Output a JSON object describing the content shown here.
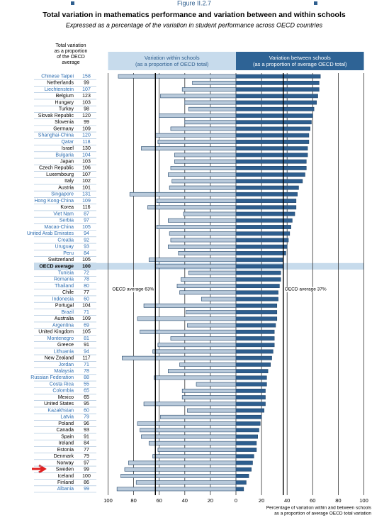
{
  "chart_data": {
    "type": "diverging_bar",
    "figure_label": "Figure II.2.7",
    "title": "Total variation in mathematics performance and variation between and within schools",
    "subtitle": "Expressed as a percentage of the variation in student performance across OECD countries",
    "total_header": [
      "Total variation",
      "as a proportion",
      "of the OECD",
      "average"
    ],
    "categories": [
      "Chinese Taipei",
      "Netherlands",
      "Liechtenstein",
      "Belgium",
      "Hungary",
      "Turkey",
      "Slovak Republic",
      "Slovenia",
      "Germany",
      "Shanghai-China",
      "Qatar",
      "Israel",
      "Bulgaria",
      "Japan",
      "Czech Republic",
      "Luxembourg",
      "Italy",
      "Austria",
      "Singapore",
      "Hong Kong-China",
      "Korea",
      "Viet Nam",
      "Serbia",
      "Macao-China",
      "United Arab Emirates",
      "Croatia",
      "Uruguay",
      "Peru",
      "Switzerland",
      "OECD average",
      "Tunisia",
      "Romania",
      "Thailand",
      "Chile",
      "Indonesia",
      "Portugal",
      "Brazil",
      "Australia",
      "Argentina",
      "United Kingdom",
      "Montenegro",
      "Greece",
      "Lithuania",
      "New Zealand",
      "Jordan",
      "Malaysia",
      "Russian Federation",
      "Costa Rica",
      "Colombia",
      "Mexico",
      "United States",
      "Kazakhstan",
      "Latvia",
      "Poland",
      "Canada",
      "Spain",
      "Ireland",
      "Estonia",
      "Denmark",
      "Norway",
      "Sweden",
      "Iceland",
      "Finland",
      "Albania"
    ],
    "totals": [
      158,
      99,
      107,
      123,
      103,
      98,
      120,
      99,
      109,
      120,
      118,
      130,
      104,
      103,
      106,
      107,
      102,
      101,
      131,
      109,
      116,
      87,
      97,
      105,
      94,
      92,
      93,
      84,
      105,
      100,
      72,
      78,
      80,
      77,
      60,
      104,
      71,
      109,
      69,
      105,
      81,
      91,
      94,
      117,
      71,
      78,
      88,
      55,
      65,
      65,
      95,
      60,
      79,
      96,
      93,
      91,
      84,
      77,
      79,
      97,
      99,
      100,
      86,
      99
    ],
    "label_colors": [
      "#2b6cb0",
      "#000000",
      "#2b6cb0",
      "#000000",
      "#000000",
      "#000000",
      "#000000",
      "#000000",
      "#000000",
      "#2b6cb0",
      "#2b6cb0",
      "#000000",
      "#2b6cb0",
      "#000000",
      "#000000",
      "#000000",
      "#000000",
      "#000000",
      "#2b6cb0",
      "#2b6cb0",
      "#000000",
      "#2b6cb0",
      "#2b6cb0",
      "#2b6cb0",
      "#2b6cb0",
      "#2b6cb0",
      "#2b6cb0",
      "#2b6cb0",
      "#000000",
      "#000000",
      "#2b6cb0",
      "#2b6cb0",
      "#2b6cb0",
      "#000000",
      "#2b6cb0",
      "#000000",
      "#2b6cb0",
      "#000000",
      "#2b6cb0",
      "#000000",
      "#2b6cb0",
      "#000000",
      "#2b6cb0",
      "#000000",
      "#2b6cb0",
      "#2b6cb0",
      "#2b6cb0",
      "#2b6cb0",
      "#2b6cb0",
      "#000000",
      "#000000",
      "#2b6cb0",
      "#2b6cb0",
      "#000000",
      "#000000",
      "#000000",
      "#000000",
      "#000000",
      "#000000",
      "#000000",
      "#000000",
      "#000000",
      "#000000",
      "#2b6cb0"
    ],
    "highlighted_categories": [
      29
    ],
    "series": [
      {
        "name": "Variation within schools",
        "note": "(as a proportion of OECD total)",
        "color": "#b9cadb",
        "side": "left",
        "values": [
          92,
          34,
          42,
          59,
          40,
          37,
          60,
          40,
          51,
          63,
          61,
          74,
          48,
          48,
          51,
          53,
          50,
          52,
          83,
          62,
          69,
          41,
          53,
          62,
          52,
          51,
          53,
          45,
          68,
          63,
          37,
          43,
          46,
          44,
          27,
          72,
          39,
          77,
          38,
          75,
          51,
          61,
          65,
          89,
          44,
          53,
          64,
          31,
          42,
          42,
          72,
          38,
          59,
          77,
          75,
          74,
          68,
          61,
          65,
          84,
          87,
          90,
          78,
          93
        ]
      },
      {
        "name": "Variation between schools",
        "note": "(as a proportion of average OECD total)",
        "color": "#2e5e8e",
        "side": "right",
        "values": [
          66,
          65,
          65,
          64,
          63,
          61,
          60,
          59,
          58,
          57,
          57,
          56,
          56,
          55,
          55,
          54,
          52,
          49,
          48,
          47,
          47,
          46,
          44,
          43,
          42,
          41,
          40,
          39,
          37,
          37,
          35,
          35,
          34,
          33,
          33,
          32,
          32,
          32,
          31,
          30,
          30,
          30,
          29,
          28,
          27,
          25,
          24,
          24,
          23,
          23,
          23,
          22,
          20,
          19,
          18,
          17,
          16,
          16,
          14,
          13,
          12,
          10,
          8,
          6
        ]
      }
    ],
    "annotations": [
      {
        "text": "OECD average 63%",
        "value": 63,
        "series": 0
      },
      {
        "text": "OECD average 37%",
        "value": 37,
        "series": 1
      }
    ],
    "xlim": [
      0,
      100
    ],
    "xticks_left": [
      100,
      80,
      60,
      40,
      20
    ],
    "xticks_right": [
      0,
      20,
      40,
      60,
      80,
      100
    ],
    "x_label": [
      "Percentage of variation within and between schools",
      "as a proportion of average OECD total variation"
    ]
  }
}
